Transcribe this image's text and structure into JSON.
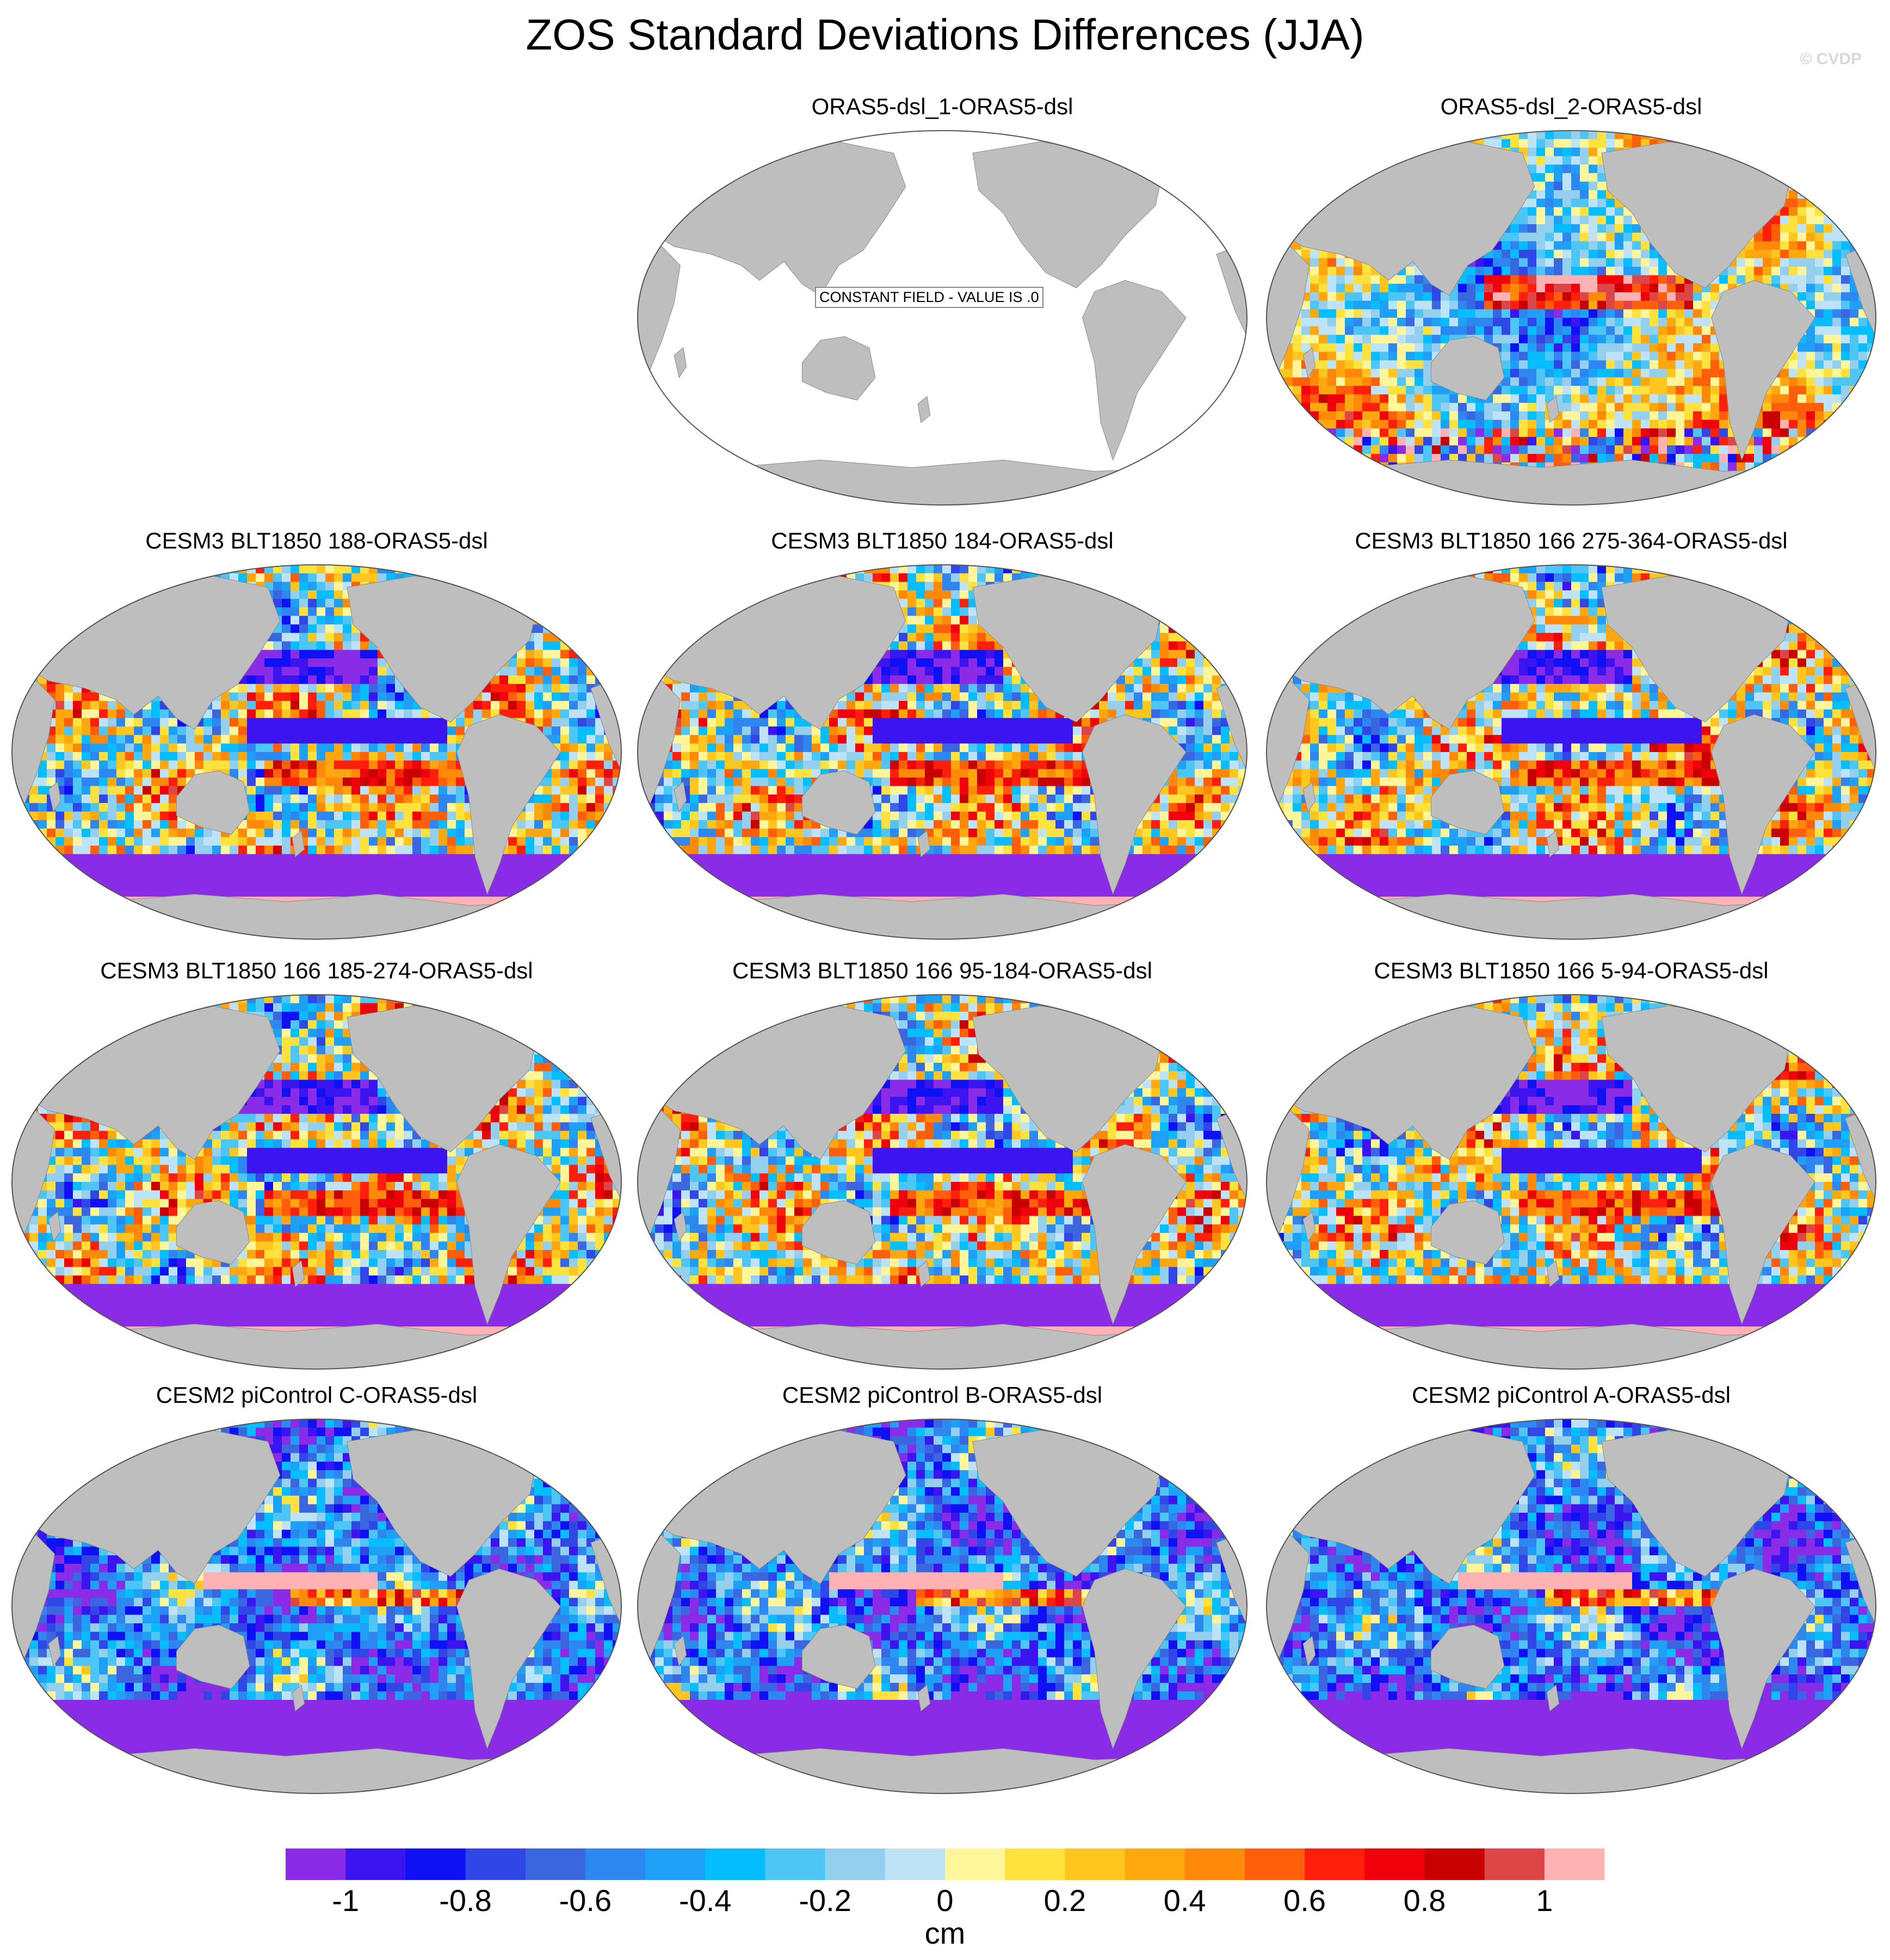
{
  "title": "ZOS Standard Deviations Differences (JJA)",
  "watermark": "© CVDP",
  "panels": [
    {
      "id": "p1",
      "title": "ORAS5-dsl_1-ORAS5-dsl",
      "constant": true,
      "constant_label": "CONSTANT FIELD - VALUE IS .0",
      "style": "none"
    },
    {
      "id": "p2",
      "title": "ORAS5-dsl_2-ORAS5-dsl",
      "constant": false,
      "style": "oras"
    },
    {
      "id": "p3",
      "title": "CESM3 BLT1850 188-ORAS5-dsl",
      "constant": false,
      "style": "cesm3"
    },
    {
      "id": "p4",
      "title": "CESM3 BLT1850 184-ORAS5-dsl",
      "constant": false,
      "style": "cesm3"
    },
    {
      "id": "p5",
      "title": "CESM3 BLT1850 166 275-364-ORAS5-dsl",
      "constant": false,
      "style": "cesm3"
    },
    {
      "id": "p6",
      "title": "CESM3 BLT1850 166 185-274-ORAS5-dsl",
      "constant": false,
      "style": "cesm3"
    },
    {
      "id": "p7",
      "title": "CESM3 BLT1850 166 95-184-ORAS5-dsl",
      "constant": false,
      "style": "cesm3"
    },
    {
      "id": "p8",
      "title": "CESM3 BLT1850 166 5-94-ORAS5-dsl",
      "constant": false,
      "style": "cesm3"
    },
    {
      "id": "p9",
      "title": "CESM2 piControl C-ORAS5-dsl",
      "constant": false,
      "style": "cesm2"
    },
    {
      "id": "p10",
      "title": "CESM2 piControl B-ORAS5-dsl",
      "constant": false,
      "style": "cesm2"
    },
    {
      "id": "p11",
      "title": "CESM2 piControl A-ORAS5-dsl",
      "constant": false,
      "style": "cesm2"
    }
  ],
  "chart_data": {
    "type": "heatmap",
    "projection": "Robinson (Pacific-centered)",
    "colorbar": {
      "unit": "cm",
      "levels": [
        -1,
        -0.9,
        -0.8,
        -0.7,
        -0.6,
        -0.5,
        -0.4,
        -0.3,
        -0.2,
        -0.1,
        0,
        0.1,
        0.2,
        0.3,
        0.4,
        0.5,
        0.6,
        0.7,
        0.8,
        0.9,
        1
      ],
      "tick_labels": [
        "-1",
        "-0.8",
        "-0.6",
        "-0.4",
        "-0.2",
        "0",
        "0.2",
        "0.4",
        "0.6",
        "0.8",
        "1"
      ],
      "colors": [
        "#8a2be8",
        "#3c14f0",
        "#1010f5",
        "#3046e6",
        "#3a66e0",
        "#2e86f0",
        "#1ea0f7",
        "#06beff",
        "#4ec6f5",
        "#94d0ee",
        "#bfe3f6",
        "#fff59a",
        "#ffe23e",
        "#ffc61f",
        "#ffa70f",
        "#ff8a0a",
        "#ff5e0a",
        "#ff1f0a",
        "#f0000a",
        "#c80000",
        "#dc4646",
        "#ffb2b4"
      ],
      "land_color": "#bebebe"
    }
  }
}
